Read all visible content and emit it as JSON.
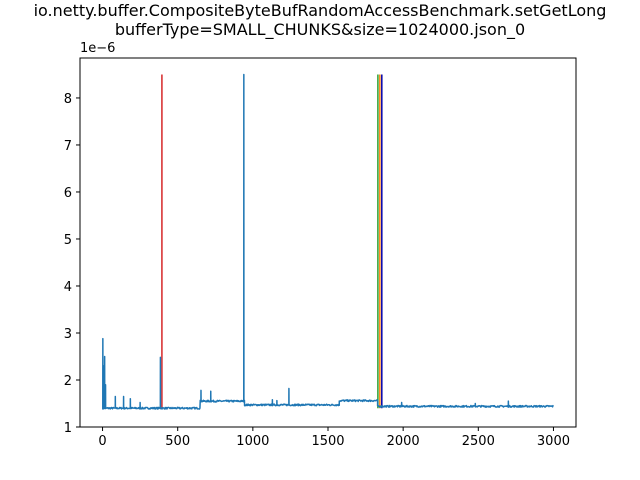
{
  "chart_data": {
    "type": "line",
    "title_line1": "io.netty.buffer.CompositeByteBufRandomAccessBenchmark.setGetLong",
    "title_line2": "bufferType=SMALL_CHUNKS&size=1024000.json_0",
    "xlabel": "",
    "ylabel": "",
    "y_offset_label": "1e−6",
    "xlim": [
      -150,
      3150
    ],
    "ylim": [
      1.0,
      8.85
    ],
    "x_ticks": [
      0,
      500,
      1000,
      1500,
      2000,
      2500,
      3000
    ],
    "x_tick_labels": [
      "0",
      "500",
      "1000",
      "1500",
      "2000",
      "2500",
      "3000"
    ],
    "y_ticks": [
      1,
      2,
      3,
      4,
      5,
      6,
      7,
      8
    ],
    "y_tick_labels": [
      "1",
      "2",
      "3",
      "4",
      "5",
      "6",
      "7",
      "8"
    ],
    "grid": false,
    "series": [
      {
        "color": "#1f77b4",
        "segments": [
          {
            "x_start": 0,
            "x_end": 650,
            "base": 1.4
          },
          {
            "x_start": 650,
            "x_end": 945,
            "base": 1.55
          },
          {
            "x_start": 945,
            "x_end": 1575,
            "base": 1.47
          },
          {
            "x_start": 1575,
            "x_end": 1830,
            "base": 1.56
          },
          {
            "x_start": 1830,
            "x_end": 3000,
            "base": 1.44
          }
        ],
        "spikes": [
          {
            "x": 2,
            "y": 2.88
          },
          {
            "x": 8,
            "y": 2.3
          },
          {
            "x": 14,
            "y": 2.5
          },
          {
            "x": 20,
            "y": 1.9
          },
          {
            "x": 85,
            "y": 1.65
          },
          {
            "x": 140,
            "y": 1.65
          },
          {
            "x": 185,
            "y": 1.6
          },
          {
            "x": 250,
            "y": 1.52
          },
          {
            "x": 385,
            "y": 2.48
          },
          {
            "x": 655,
            "y": 1.78
          },
          {
            "x": 720,
            "y": 1.76
          },
          {
            "x": 940,
            "y": 8.5
          },
          {
            "x": 1130,
            "y": 1.58
          },
          {
            "x": 1160,
            "y": 1.56
          },
          {
            "x": 1240,
            "y": 1.82
          },
          {
            "x": 1990,
            "y": 1.52
          },
          {
            "x": 2480,
            "y": 1.5
          },
          {
            "x": 2700,
            "y": 1.55
          }
        ]
      }
    ],
    "vertical_lines": [
      {
        "x": 395,
        "y_from": 1.4,
        "y_to": 8.5,
        "color": "#d62728"
      },
      {
        "x": 1832,
        "y_from": 1.4,
        "y_to": 8.5,
        "color": "#2ca02c"
      },
      {
        "x": 1845,
        "y_from": 1.4,
        "y_to": 8.5,
        "color": "#ff7f0e"
      },
      {
        "x": 1858,
        "y_from": 1.4,
        "y_to": 8.5,
        "color": "#0000aa"
      }
    ]
  }
}
